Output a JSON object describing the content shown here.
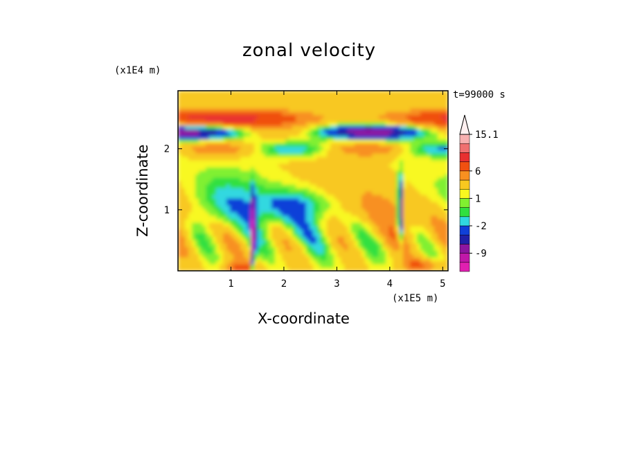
{
  "chart_data": {
    "type": "heatmap",
    "title": "zonal velocity",
    "xlabel": "X-coordinate",
    "ylabel": "Z-coordinate",
    "x_unit": "(x1E5 m)",
    "z_unit": "(x1E4 m)",
    "time_label": "t=99000 s",
    "xlim": [
      0.0,
      5.1
    ],
    "ylim": [
      0.0,
      2.95
    ],
    "x_ticks": [
      "1",
      "2",
      "3",
      "4",
      "5"
    ],
    "x_tick_values": [
      1,
      2,
      3,
      4,
      5
    ],
    "y_ticks": [
      "1",
      "2"
    ],
    "y_tick_values": [
      1,
      2
    ],
    "colorbar": {
      "labels": [
        "15.1",
        "6",
        "1",
        "-2",
        "-9"
      ],
      "label_levels": [
        15.1,
        6,
        1,
        -2,
        -9
      ],
      "levels": [
        -15,
        -12,
        -9,
        -6,
        -4,
        -2,
        -1,
        0,
        1,
        2,
        4,
        6,
        9,
        12,
        15.1
      ],
      "colors": [
        "#e020b0",
        "#c018a8",
        "#8c16a0",
        "#2020a8",
        "#1040d8",
        "#30d8e0",
        "#30e040",
        "#80f030",
        "#f8f820",
        "#f8c820",
        "#f89020",
        "#f05010",
        "#e83030",
        "#f07070",
        "#f8b0b0"
      ],
      "extend_top": true
    },
    "field_features": [
      {
        "desc": "upper positive band",
        "z_range": [
          2.3,
          2.7
        ],
        "value": 6
      },
      {
        "desc": "upper negative jet",
        "z_range": [
          2.0,
          2.4
        ],
        "value": -9
      },
      {
        "desc": "lower-mid yellow region",
        "z_range": [
          0.3,
          1.8
        ],
        "value": 1
      },
      {
        "desc": "near-surface negative streaks",
        "x": [
          1.4,
          4.2
        ],
        "value": -12
      }
    ]
  }
}
